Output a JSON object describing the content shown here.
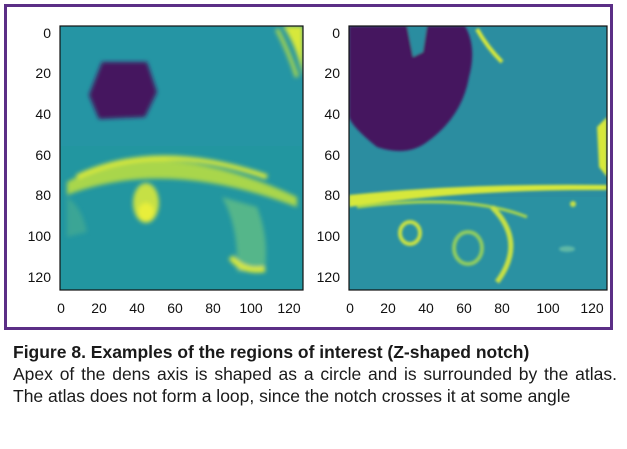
{
  "figure": {
    "border_color": "#5b2e86",
    "panels": [
      {
        "name": "left",
        "y_ticks": [
          "0",
          "20",
          "40",
          "60",
          "80",
          "100",
          "120"
        ],
        "x_ticks": [
          "0",
          "20",
          "40",
          "60",
          "80",
          "100",
          "120"
        ],
        "colormap": {
          "background": "#2196a0",
          "dark": "#44125f",
          "bright": "#d7e83a"
        }
      },
      {
        "name": "right",
        "y_ticks": [
          "0",
          "20",
          "40",
          "60",
          "80",
          "100",
          "120"
        ],
        "x_ticks": [
          "0",
          "20",
          "40",
          "60",
          "80",
          "100",
          "120"
        ],
        "colormap": {
          "background": "#2a8fa0",
          "dark": "#44125f",
          "bright": "#d7e83a"
        }
      }
    ]
  },
  "caption": {
    "title": "Figure 8. Examples of the regions of interest (Z-shaped notch)",
    "text": "Apex of the dens axis is shaped as a circle and is surrounded by the atlas. The atlas does not form a loop, since the notch crosses it at some angle"
  }
}
